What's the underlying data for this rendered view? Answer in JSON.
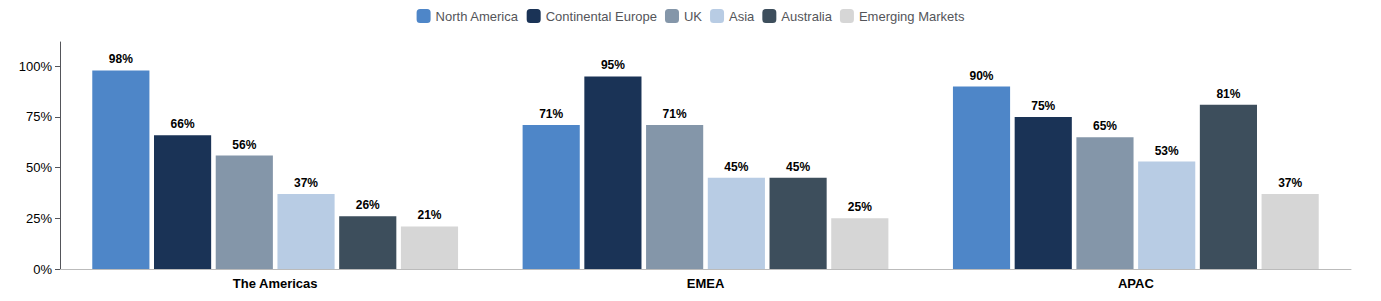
{
  "chart_data": {
    "type": "bar",
    "categories": [
      "The Americas",
      "EMEA",
      "APAC"
    ],
    "series": [
      {
        "name": "North America",
        "color": "#4E86C8",
        "values": [
          98,
          71,
          90
        ],
        "value_labels": [
          "98%",
          "71%",
          "90%"
        ]
      },
      {
        "name": "Continental Europe",
        "color": "#1A3356",
        "values": [
          66,
          95,
          75
        ],
        "value_labels": [
          "66%",
          "95%",
          "75%"
        ]
      },
      {
        "name": "UK",
        "color": "#8496A9",
        "values": [
          56,
          71,
          65
        ],
        "value_labels": [
          "56%",
          "71%",
          "65%"
        ]
      },
      {
        "name": "Asia",
        "color": "#B8CCE4",
        "values": [
          37,
          45,
          53
        ],
        "value_labels": [
          "37%",
          "45%",
          "53%"
        ]
      },
      {
        "name": "Australia",
        "color": "#3D4E5C",
        "values": [
          26,
          45,
          81
        ],
        "value_labels": [
          "26%",
          "45%",
          "81%"
        ]
      },
      {
        "name": "Emerging Markets",
        "color": "#D6D6D6",
        "values": [
          21,
          25,
          37
        ],
        "value_labels": [
          "21%",
          "25%",
          "37%"
        ]
      }
    ],
    "ylim": [
      0,
      112
    ],
    "yticks": [
      {
        "value": 0,
        "label": "0%"
      },
      {
        "value": 25,
        "label": "25%"
      },
      {
        "value": 50,
        "label": "50%"
      },
      {
        "value": 75,
        "label": "75%"
      },
      {
        "value": 100,
        "label": "100%"
      }
    ],
    "grid": false,
    "legend": "top",
    "data_labels": true
  }
}
